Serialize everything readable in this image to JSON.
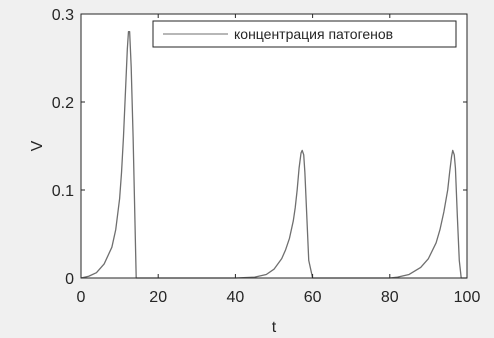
{
  "chart_data": {
    "type": "line",
    "xlabel": "t",
    "ylabel": "V",
    "xlim": [
      0,
      100
    ],
    "ylim": [
      0,
      0.3
    ],
    "xticks": [
      0,
      20,
      40,
      60,
      80,
      100
    ],
    "yticks": [
      0,
      0.1,
      0.2,
      0.3
    ],
    "grid": false,
    "legend_position": "top-right",
    "colors": {
      "line": "#6f6f6f",
      "axes": "#262626",
      "plot_bg": "#ffffff",
      "figure_bg": "#f0f0f0"
    },
    "series": [
      {
        "name": "концентрация патогенов",
        "x": [
          0,
          2,
          4,
          6,
          8,
          9,
          10,
          10.5,
          11,
          11.5,
          12,
          12.3,
          12.6,
          13,
          13.5,
          14,
          14.3,
          20,
          30,
          40,
          45,
          48,
          50,
          52,
          53,
          54,
          55,
          55.5,
          56,
          56.5,
          57,
          57.3,
          57.7,
          58,
          58.5,
          59,
          60,
          70,
          80,
          82,
          85,
          88,
          90,
          92,
          93,
          94,
          95,
          95.5,
          96,
          96.3,
          96.7,
          97,
          97.5,
          98,
          98.5,
          100
        ],
        "y": [
          0,
          0.002,
          0.006,
          0.016,
          0.035,
          0.055,
          0.09,
          0.12,
          0.16,
          0.21,
          0.26,
          0.28,
          0.28,
          0.24,
          0.16,
          0.06,
          0,
          0,
          0,
          0,
          0.001,
          0.004,
          0.01,
          0.022,
          0.032,
          0.045,
          0.065,
          0.08,
          0.1,
          0.125,
          0.142,
          0.145,
          0.14,
          0.12,
          0.07,
          0.02,
          0,
          0,
          0,
          0.001,
          0.004,
          0.012,
          0.022,
          0.04,
          0.055,
          0.075,
          0.1,
          0.12,
          0.138,
          0.145,
          0.14,
          0.125,
          0.07,
          0.02,
          0,
          0
        ]
      }
    ]
  }
}
